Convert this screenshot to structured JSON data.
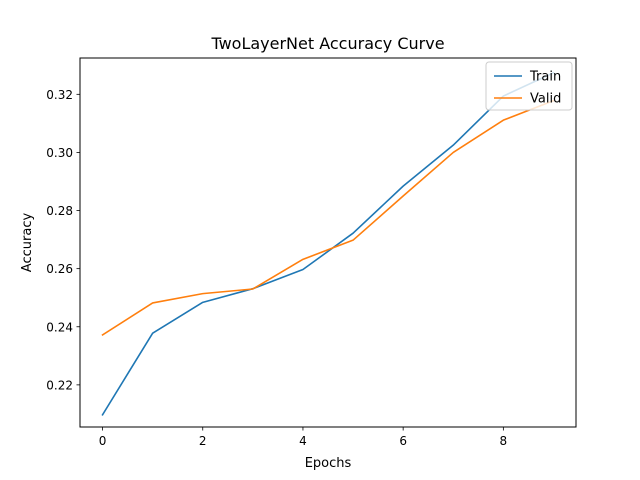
{
  "chart_data": {
    "type": "line",
    "title": "TwoLayerNet Accuracy Curve",
    "xlabel": "Epochs",
    "ylabel": "Accuracy",
    "xlim": [
      -0.45,
      9.45
    ],
    "ylim": [
      0.2055,
      0.3325
    ],
    "xticks": [
      0,
      2,
      4,
      6,
      8
    ],
    "xtick_labels": [
      "0",
      "2",
      "4",
      "6",
      "8"
    ],
    "yticks": [
      0.22,
      0.24,
      0.26,
      0.28,
      0.3,
      0.32
    ],
    "ytick_labels": [
      "0.22",
      "0.24",
      "0.26",
      "0.28",
      "0.30",
      "0.32"
    ],
    "x": [
      0,
      1,
      2,
      3,
      4,
      5,
      6,
      7,
      8,
      9
    ],
    "series": [
      {
        "name": "Train",
        "color": "#1f77b4",
        "values": [
          0.2097,
          0.2378,
          0.2484,
          0.2531,
          0.2597,
          0.2722,
          0.2884,
          0.3025,
          0.3194,
          0.3274
        ]
      },
      {
        "name": "Valid",
        "color": "#ff7f0e",
        "values": [
          0.2372,
          0.2482,
          0.2514,
          0.253,
          0.2632,
          0.2698,
          0.285,
          0.3,
          0.3111,
          0.3178
        ]
      }
    ],
    "grid": false,
    "legend": "top-right"
  }
}
